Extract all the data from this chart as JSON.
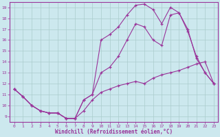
{
  "xlabel": "Windchill (Refroidissement éolien,°C)",
  "bg_color": "#cce8ee",
  "line_color": "#993399",
  "grid_color": "#aacccc",
  "xlim": [
    -0.5,
    23.5
  ],
  "ylim": [
    8.5,
    19.5
  ],
  "xticks": [
    0,
    1,
    2,
    3,
    4,
    5,
    6,
    7,
    8,
    9,
    10,
    11,
    12,
    13,
    14,
    15,
    16,
    17,
    18,
    19,
    20,
    21,
    22,
    23
  ],
  "yticks": [
    9,
    10,
    11,
    12,
    13,
    14,
    15,
    16,
    17,
    18,
    19
  ],
  "series": [
    [
      11.5,
      10.8,
      10.0,
      9.5,
      9.3,
      9.3,
      8.8,
      8.8,
      9.5,
      10.5,
      11.2,
      11.5,
      11.8,
      12.0,
      12.2,
      12.0,
      12.5,
      12.8,
      13.0,
      13.2,
      13.5,
      13.8,
      14.0,
      12.0
    ],
    [
      11.5,
      10.8,
      10.0,
      9.5,
      9.3,
      9.3,
      8.8,
      8.8,
      10.5,
      11.0,
      13.0,
      13.5,
      14.5,
      16.0,
      17.5,
      17.2,
      16.0,
      15.5,
      18.3,
      18.5,
      16.8,
      14.5,
      13.0,
      12.0
    ],
    [
      11.5,
      10.8,
      10.0,
      9.5,
      9.3,
      9.3,
      8.8,
      8.8,
      10.5,
      11.0,
      16.0,
      16.5,
      17.2,
      18.3,
      19.2,
      19.3,
      18.8,
      17.5,
      19.0,
      18.5,
      17.0,
      14.3,
      13.0,
      12.0
    ]
  ]
}
